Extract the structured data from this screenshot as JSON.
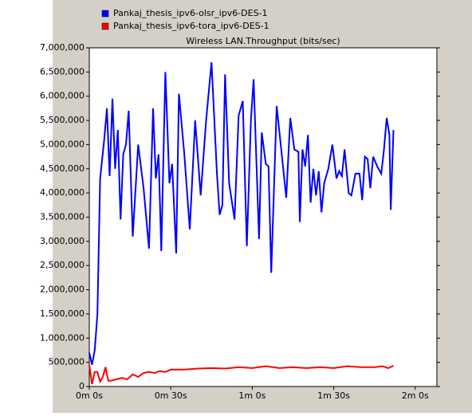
{
  "chart_data": {
    "type": "line",
    "title": "Wireless LAN.Throughput (bits/sec)",
    "xlim": [
      0,
      128
    ],
    "ylim": [
      0,
      7000000
    ],
    "xticks": [
      {
        "value": 0,
        "label": "0m 0s"
      },
      {
        "value": 30,
        "label": "0m 30s"
      },
      {
        "value": 60,
        "label": "1m 0s"
      },
      {
        "value": 90,
        "label": "1m 30s"
      },
      {
        "value": 120,
        "label": "2m 0s"
      }
    ],
    "yticks": [
      0,
      {
        "value": 500000,
        "label": "500,000"
      },
      {
        "value": 1000000,
        "label": "1,000,000"
      },
      {
        "value": 1500000,
        "label": "1,500,000"
      },
      {
        "value": 2000000,
        "label": "2,000,000"
      },
      {
        "value": 2500000,
        "label": "2,500,000"
      },
      {
        "value": 3000000,
        "label": "3,000,000"
      },
      {
        "value": 3500000,
        "label": "3,500,000"
      },
      {
        "value": 4000000,
        "label": "4,000,000"
      },
      {
        "value": 4500000,
        "label": "4,500,000"
      },
      {
        "value": 5000000,
        "label": "5,000,000"
      },
      {
        "value": 5500000,
        "label": "5,500,000"
      },
      {
        "value": 6000000,
        "label": "6,000,000"
      },
      {
        "value": 6500000,
        "label": "6,500,000"
      },
      {
        "value": 7000000,
        "label": "7,000,000"
      }
    ],
    "grid": false,
    "series": [
      {
        "name": "Pankaj_thesis_ipv6-olsr_ipv6-DES-1",
        "color": "#0000ff",
        "x": [
          0,
          1,
          2,
          3,
          4,
          5.5,
          6.5,
          7.5,
          8.5,
          9.5,
          10.5,
          11.5,
          12.5,
          13.5,
          14.5,
          16,
          18,
          20,
          22,
          23.5,
          24.5,
          25.5,
          26.5,
          28,
          29.5,
          30.5,
          32,
          33,
          35,
          37,
          39,
          41,
          43,
          45,
          47,
          48,
          49,
          50,
          51.5,
          53.5,
          55,
          56.5,
          58,
          59.5,
          60.5,
          62.5,
          63.5,
          65,
          66,
          67,
          69,
          70.5,
          72.5,
          74,
          75.5,
          77,
          77.5,
          78.5,
          79.5,
          80.5,
          81.5,
          82.5,
          83.5,
          84.5,
          85.5,
          86.5,
          88,
          89.5,
          91,
          92,
          93,
          94,
          95.5,
          96.5,
          98,
          99.5,
          100.5,
          101.5,
          102.5,
          103.5,
          104.5,
          106,
          107.5,
          108.5,
          109.5,
          110.5,
          111,
          112
        ],
        "values": [
          700000,
          450000,
          750000,
          1500000,
          4300000,
          5100000,
          5750000,
          4350000,
          5950000,
          4500000,
          5300000,
          3450000,
          4800000,
          5000000,
          5700000,
          3100000,
          5000000,
          4100000,
          2850000,
          5750000,
          4300000,
          4800000,
          2800000,
          6500000,
          4200000,
          4600000,
          2750000,
          6050000,
          4800000,
          3250000,
          5500000,
          3950000,
          5500000,
          6700000,
          4400000,
          3550000,
          3750000,
          6450000,
          4200000,
          3450000,
          5600000,
          5900000,
          2900000,
          5500000,
          6350000,
          3050000,
          5250000,
          4600000,
          4550000,
          2350000,
          5800000,
          5000000,
          3900000,
          5550000,
          4900000,
          4850000,
          3400000,
          4900000,
          4550000,
          5200000,
          3800000,
          4500000,
          3950000,
          4450000,
          3600000,
          4200000,
          4500000,
          5000000,
          4300000,
          4450000,
          4350000,
          4900000,
          4000000,
          3950000,
          4400000,
          4400000,
          3850000,
          4750000,
          4700000,
          4100000,
          4750000,
          4550000,
          4400000,
          4900000,
          5550000,
          5200000,
          3650000,
          5300000
        ]
      },
      {
        "name": "Pankaj_thesis_ipv6-tora_ipv6-DES-1",
        "color": "#ff0000",
        "x": [
          0,
          1,
          2,
          3,
          4,
          5,
          6,
          7,
          8,
          10,
          12,
          14,
          16,
          18,
          20,
          22,
          24,
          26,
          28,
          30,
          35,
          40,
          45,
          50,
          55,
          60,
          65,
          70,
          75,
          80,
          85,
          90,
          95,
          100,
          105,
          108,
          110,
          112
        ],
        "values": [
          450000,
          50000,
          300000,
          300000,
          100000,
          200000,
          400000,
          120000,
          120000,
          150000,
          180000,
          150000,
          250000,
          200000,
          280000,
          300000,
          280000,
          320000,
          300000,
          350000,
          350000,
          370000,
          380000,
          370000,
          400000,
          380000,
          420000,
          380000,
          400000,
          380000,
          400000,
          380000,
          420000,
          400000,
          400000,
          420000,
          380000,
          430000
        ]
      }
    ]
  }
}
